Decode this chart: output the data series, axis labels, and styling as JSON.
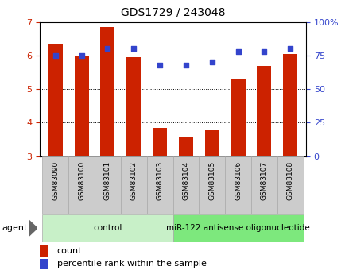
{
  "title": "GDS1729 / 243048",
  "samples": [
    "GSM83090",
    "GSM83100",
    "GSM83101",
    "GSM83102",
    "GSM83103",
    "GSM83104",
    "GSM83105",
    "GSM83106",
    "GSM83107",
    "GSM83108"
  ],
  "count_values": [
    6.35,
    6.0,
    6.85,
    5.95,
    3.85,
    3.55,
    3.78,
    5.3,
    5.68,
    6.05
  ],
  "percentile_values": [
    75,
    75,
    80,
    80,
    68,
    68,
    70,
    78,
    78,
    80
  ],
  "ylim_left": [
    3,
    7
  ],
  "ylim_right": [
    0,
    100
  ],
  "yticks_left": [
    3,
    4,
    5,
    6,
    7
  ],
  "yticks_right": [
    0,
    25,
    50,
    75,
    100
  ],
  "ytick_labels_right": [
    "0",
    "25",
    "50",
    "75",
    "100%"
  ],
  "bar_color": "#cc2200",
  "scatter_color": "#3344cc",
  "groups": [
    {
      "label": "control",
      "start": 0,
      "end": 5,
      "color": "#c8f0c8"
    },
    {
      "label": "miR-122 antisense oligonucleotide",
      "start": 5,
      "end": 10,
      "color": "#7de87d"
    }
  ],
  "agent_label": "agent",
  "legend_count_label": "count",
  "legend_pct_label": "percentile rank within the sample",
  "bg_color": "#ffffff",
  "left_tick_color": "#cc2200",
  "right_tick_color": "#3344cc",
  "xtick_box_color": "#cccccc",
  "xtick_box_edge": "#aaaaaa"
}
